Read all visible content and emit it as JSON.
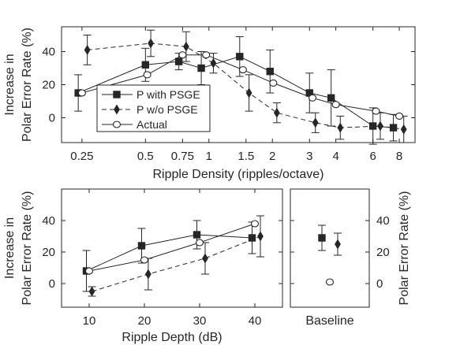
{
  "chart_data": [
    {
      "type": "line",
      "xlabel": "Ripple Density (ripples/octave)",
      "ylabel_lines": [
        "Increase in",
        "Polar Error Rate (%)"
      ],
      "x_scale": "log",
      "xlim": [
        0.2,
        9.5
      ],
      "ylim": [
        -15,
        55
      ],
      "x_ticks": [
        0.25,
        0.5,
        0.75,
        1,
        1.5,
        2,
        3,
        4,
        6,
        8
      ],
      "x_tick_labels": [
        "0.25",
        "0.5",
        "0.75",
        "1",
        "1.5",
        "2",
        "3",
        "4",
        "6",
        "8"
      ],
      "y_ticks": [
        0,
        20,
        40
      ],
      "y_tick_labels": [
        "0",
        "20",
        "40"
      ],
      "legend_position": "bottom-left",
      "series": [
        {
          "name": "P with PSGE",
          "marker": "square",
          "line": "solid",
          "x": [
            0.24,
            0.5,
            0.72,
            0.92,
            1.4,
            1.95,
            3.0,
            3.8,
            6.0,
            7.5
          ],
          "y": [
            15,
            32,
            34,
            30,
            37,
            28,
            15,
            12,
            -5,
            -6
          ],
          "err": [
            11,
            10,
            5,
            10,
            12,
            13,
            12,
            17,
            11,
            8
          ]
        },
        {
          "name": "P w/o PSGE",
          "marker": "diamond",
          "line": "dashed",
          "x": [
            0.265,
            0.53,
            0.78,
            1.05,
            1.55,
            2.1,
            3.2,
            4.2,
            6.5,
            8.4
          ],
          "y": [
            41,
            45,
            43,
            33,
            15,
            3,
            -3,
            -6,
            -5,
            -7
          ],
          "err": [
            9,
            8,
            9,
            6,
            11,
            6,
            6,
            7,
            8,
            8
          ]
        },
        {
          "name": "Actual",
          "marker": "circle",
          "line": "solid",
          "x": [
            0.25,
            0.51,
            0.75,
            0.97,
            1.45,
            2.02,
            3.1,
            4.0,
            6.2,
            8.0
          ],
          "y": [
            15,
            26,
            38,
            38,
            29,
            21,
            12,
            8,
            4,
            1
          ],
          "err": [
            0,
            0,
            0,
            0,
            0,
            0,
            0,
            0,
            0,
            0
          ]
        }
      ]
    },
    {
      "type": "line",
      "xlabel": "Ripple Depth (dB)",
      "ylabel_lines": [
        "Increase in",
        "Polar Error Rate (%)"
      ],
      "x_scale": "linear",
      "xlim": [
        5,
        45
      ],
      "ylim": [
        -15,
        60
      ],
      "x_ticks": [
        10,
        20,
        30,
        40
      ],
      "x_tick_labels": [
        "10",
        "20",
        "30",
        "40"
      ],
      "y_ticks": [
        0,
        20,
        40
      ],
      "y_tick_labels": [
        "0",
        "20",
        "40"
      ],
      "series": [
        {
          "name": "P with PSGE",
          "marker": "square",
          "line": "solid",
          "x": [
            9.5,
            19.5,
            29.5,
            39.5
          ],
          "y": [
            8,
            24,
            31,
            29
          ],
          "err": [
            13,
            11,
            9,
            10
          ]
        },
        {
          "name": "P w/o PSGE",
          "marker": "diamond",
          "line": "dashed",
          "x": [
            10.5,
            20.7,
            31.0,
            41.0
          ],
          "y": [
            -5,
            6,
            16,
            30
          ],
          "err": [
            3,
            10,
            10,
            13
          ]
        },
        {
          "name": "Actual",
          "marker": "circle",
          "line": "solid",
          "x": [
            10.0,
            20.0,
            30.0,
            40.0
          ],
          "y": [
            8,
            15,
            26,
            38
          ],
          "err": [
            0,
            0,
            0,
            0
          ]
        }
      ]
    },
    {
      "type": "scatter",
      "xlabel": "Baseline",
      "ylabel": "Polar Error Rate (%)",
      "x_scale": "linear",
      "xlim": [
        0,
        1
      ],
      "ylim": [
        -15,
        60
      ],
      "y_ticks": [
        0,
        20,
        40
      ],
      "y_tick_labels": [
        "0",
        "20",
        "40"
      ],
      "y_axis_side": "right",
      "series": [
        {
          "name": "P with PSGE",
          "marker": "square",
          "x": [
            0.4
          ],
          "y": [
            29
          ],
          "err": [
            8
          ]
        },
        {
          "name": "P w/o PSGE",
          "marker": "diamond",
          "x": [
            0.6
          ],
          "y": [
            25
          ],
          "err": [
            7
          ]
        },
        {
          "name": "Actual",
          "marker": "circle",
          "x": [
            0.5
          ],
          "y": [
            1
          ],
          "err": [
            0
          ]
        }
      ]
    }
  ]
}
